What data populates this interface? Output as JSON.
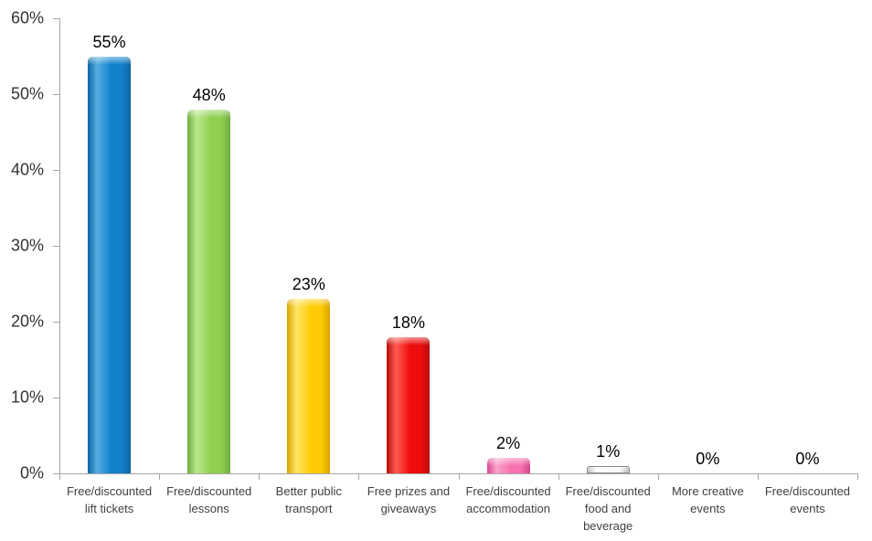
{
  "chart_data": {
    "type": "bar",
    "title": "",
    "xlabel": "",
    "ylabel": "",
    "categories": [
      "Free/discounted lift tickets",
      "Free/discounted lessons",
      "Better public transport",
      "Free prizes and giveaways",
      "Free/discounted accommodation",
      "Free/discounted food and beverage",
      "More creative events",
      "Free/discounted events"
    ],
    "values": [
      55,
      48,
      23,
      18,
      2,
      1,
      0,
      0
    ],
    "data_labels": [
      "55%",
      "48%",
      "23%",
      "18%",
      "2%",
      "1%",
      "0%",
      "0%"
    ],
    "ylim": [
      0,
      60
    ],
    "yticks": [
      0,
      10,
      20,
      30,
      40,
      50,
      60
    ],
    "ytick_labels": [
      "0%",
      "10%",
      "20%",
      "30%",
      "40%",
      "50%",
      "60%"
    ],
    "grid": false,
    "legend": "none",
    "background": "#FFFFFF",
    "axis_color": "#A6A6A6",
    "value_label_color": "#000000",
    "ytick_label_color": "#333333",
    "category_label_color": "#404040",
    "bar_styles": [
      {
        "name": "blue",
        "fill": "#1181CB",
        "light": "#55AEE2",
        "dark": "#0E66A2",
        "border": ""
      },
      {
        "name": "green",
        "fill": "#8FD04F",
        "light": "#BCE88E",
        "dark": "#6FAE3E",
        "border": ""
      },
      {
        "name": "yellow",
        "fill": "#FFCB05",
        "light": "#FFE566",
        "dark": "#D9A400",
        "border": ""
      },
      {
        "name": "red",
        "fill": "#EE0C0C",
        "light": "#FF5A50",
        "dark": "#B80E0E",
        "border": ""
      },
      {
        "name": "pink",
        "fill": "#F671AD",
        "light": "#FBA3CC",
        "dark": "#D6468E",
        "border": ""
      },
      {
        "name": "white",
        "fill": "#F5F5F5",
        "light": "#FFFFFF",
        "dark": "#ABABAB",
        "border": "#8C8C8C"
      },
      {
        "name": "none",
        "fill": "",
        "light": "",
        "dark": "",
        "border": ""
      },
      {
        "name": "none",
        "fill": "",
        "light": "",
        "dark": "",
        "border": ""
      }
    ]
  }
}
